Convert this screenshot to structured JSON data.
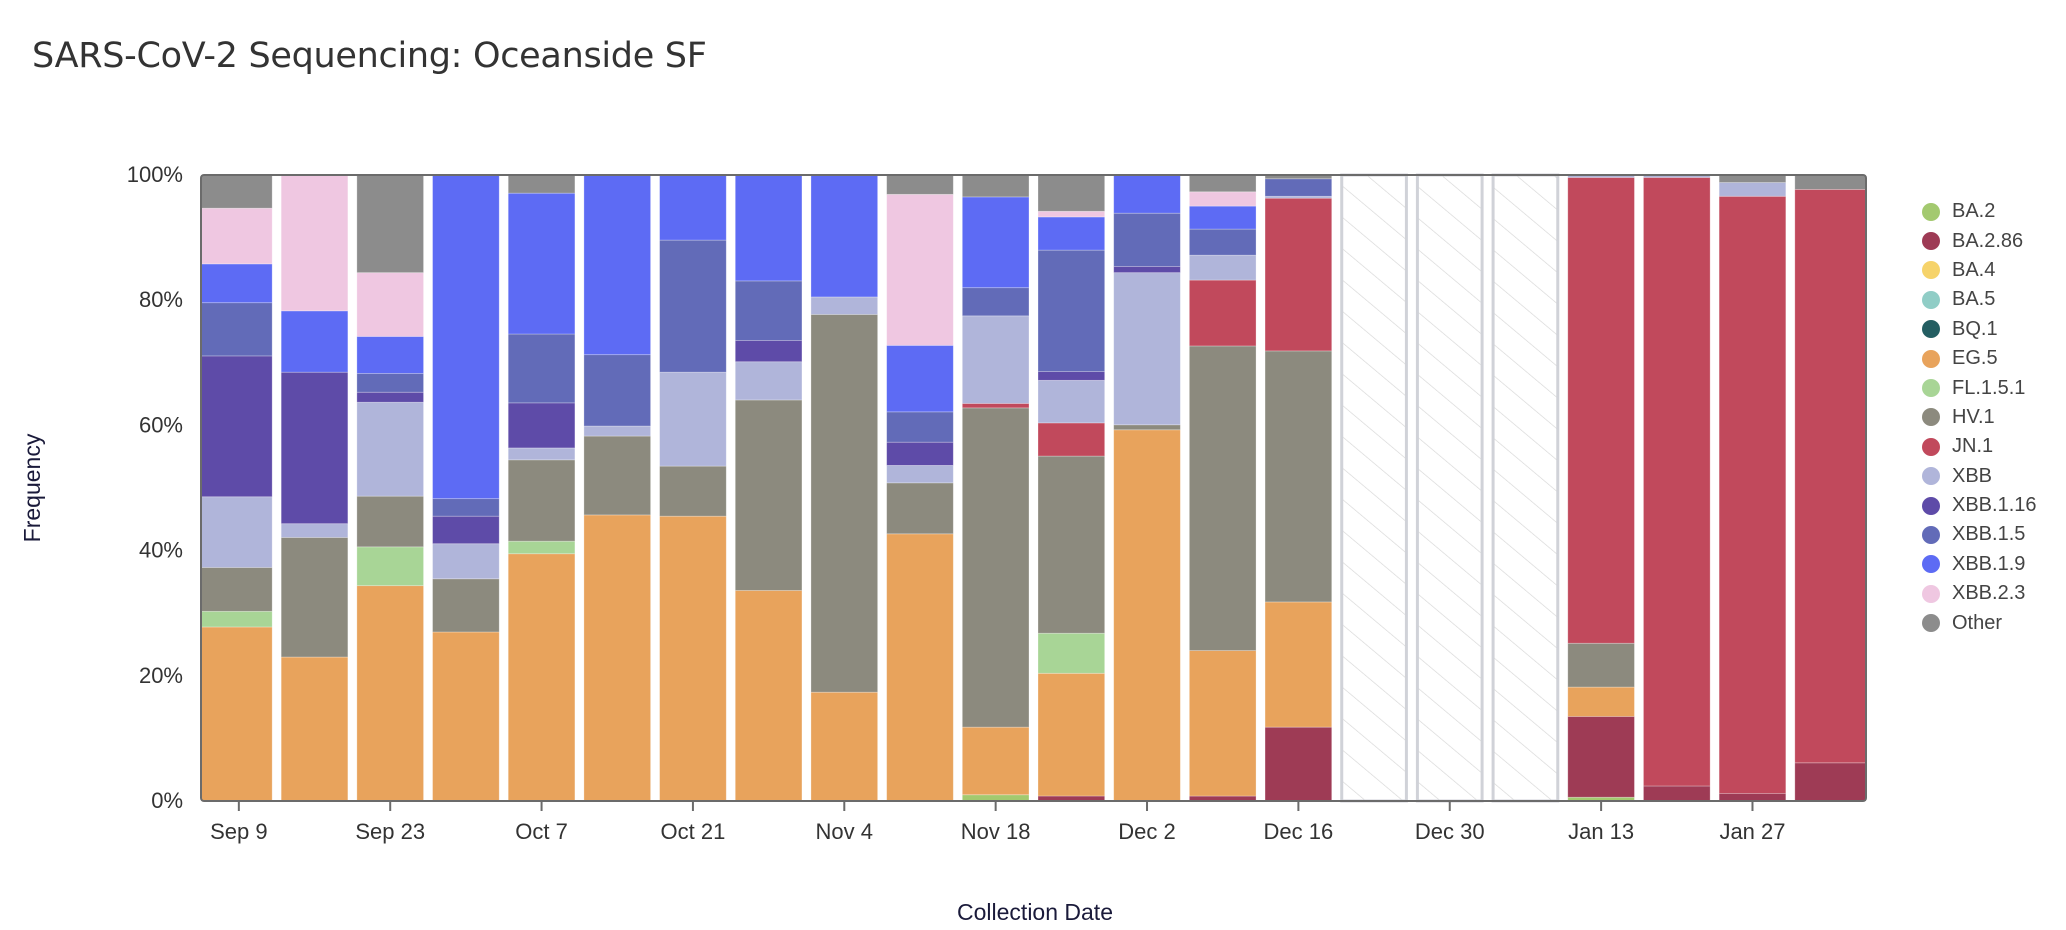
{
  "title": "SARS-CoV-2 Sequencing: Oceanside SF",
  "chart_data": {
    "type": "bar",
    "stacked": true,
    "normalized": true,
    "title": "SARS-CoV-2 Sequencing: Oceanside SF",
    "xlabel": "Collection Date",
    "ylabel": "Frequency",
    "ylim": [
      0,
      100
    ],
    "yticks": [
      "0%",
      "20%",
      "40%",
      "60%",
      "80%",
      "100%"
    ],
    "xticks": [
      "Sep 9",
      "Sep 23",
      "Oct 7",
      "Oct 21",
      "Nov 4",
      "Nov 18",
      "Dec 2",
      "Dec 16",
      "Dec 30",
      "Jan 13",
      "Jan 27"
    ],
    "grid": false,
    "legend_position": "right",
    "categories": [
      "Sep 9",
      "Sep 16",
      "Sep 23",
      "Sep 30",
      "Oct 7",
      "Oct 14",
      "Oct 21",
      "Oct 28",
      "Nov 4",
      "Nov 11",
      "Nov 18",
      "Nov 25",
      "Dec 2",
      "Dec 9",
      "Dec 16",
      "Dec 23",
      "Dec 30",
      "Jan 6",
      "Jan 13",
      "Jan 20",
      "Jan 27",
      "Feb 3"
    ],
    "no_data": [
      false,
      false,
      false,
      false,
      false,
      false,
      false,
      false,
      false,
      false,
      false,
      false,
      false,
      false,
      false,
      true,
      true,
      true,
      false,
      false,
      false,
      false
    ],
    "series": [
      {
        "name": "BA.2",
        "color": "#a3c96f",
        "values": [
          0,
          0,
          0,
          0,
          0,
          0,
          0,
          0,
          0,
          0,
          1.0,
          0,
          0,
          0,
          0,
          0,
          0,
          0,
          0.6,
          0,
          0,
          0
        ]
      },
      {
        "name": "BA.2.86",
        "color": "#9e3b55",
        "values": [
          0,
          0,
          0,
          0,
          0,
          0,
          0,
          0,
          0,
          0,
          0,
          0.8,
          0,
          0.8,
          11.8,
          0,
          0,
          0,
          12.9,
          2.4,
          1.2,
          6.1
        ]
      },
      {
        "name": "BA.4",
        "color": "#f6d36a",
        "values": [
          0,
          0,
          0,
          0,
          0,
          0,
          0,
          0,
          0,
          0,
          0,
          0,
          0,
          0,
          0,
          0,
          0,
          0,
          0,
          0,
          0,
          0
        ]
      },
      {
        "name": "BA.5",
        "color": "#90cdc6",
        "values": [
          0,
          0,
          0,
          0,
          0,
          0,
          0,
          0,
          0,
          0,
          0,
          0,
          0,
          0,
          0,
          0,
          0,
          0,
          0,
          0,
          0,
          0
        ]
      },
      {
        "name": "BQ.1",
        "color": "#245e62",
        "values": [
          0,
          0,
          0,
          0,
          0,
          0,
          0,
          0,
          0,
          0,
          0,
          0,
          0,
          0,
          0,
          0,
          0,
          0,
          0,
          0,
          0,
          0
        ]
      },
      {
        "name": "EG.5",
        "color": "#e8a35c",
        "values": [
          27.8,
          23.0,
          34.4,
          27.0,
          39.5,
          45.7,
          45.5,
          33.6,
          17.4,
          41.4,
          10.8,
          19.6,
          59.3,
          23.4,
          20.0,
          0,
          0,
          0,
          4.7,
          0,
          0,
          0
        ]
      },
      {
        "name": "FL.1.5.1",
        "color": "#a8d596",
        "values": [
          2.5,
          0,
          6.2,
          0,
          2.0,
          0,
          0,
          0,
          0,
          0,
          0,
          6.4,
          0,
          0,
          0,
          0,
          0,
          0,
          0,
          0,
          0,
          0
        ]
      },
      {
        "name": "HV.1",
        "color": "#8c8a7e",
        "values": [
          7.0,
          19.1,
          8.1,
          8.5,
          13.0,
          12.6,
          8.0,
          30.4,
          60.4,
          7.9,
          51.0,
          28.3,
          0.8,
          49.0,
          40.1,
          0,
          0,
          0,
          7.0,
          0,
          0,
          0
        ]
      },
      {
        "name": "JN.1",
        "color": "#c1495c",
        "values": [
          0,
          0,
          0,
          0,
          0,
          0,
          0,
          0,
          0,
          0,
          0.7,
          5.3,
          0,
          10.6,
          24.4,
          0,
          0,
          0,
          74.4,
          97.2,
          95.4,
          91.6
        ]
      },
      {
        "name": "XBB",
        "color": "#b0b5da",
        "values": [
          11.3,
          2.2,
          15.0,
          5.6,
          1.9,
          1.6,
          15.0,
          6.1,
          2.8,
          2.7,
          14.0,
          6.8,
          24.3,
          4.0,
          0.3,
          0,
          0,
          0,
          0.4,
          0.4,
          2.2,
          0
        ]
      },
      {
        "name": "XBB.1.16",
        "color": "#5e4ba8",
        "values": [
          22.5,
          24.2,
          1.6,
          4.4,
          7.2,
          0,
          0,
          3.4,
          0,
          3.6,
          0,
          1.4,
          1.0,
          0,
          0,
          0,
          0,
          0,
          0,
          0,
          0,
          0
        ]
      },
      {
        "name": "XBB.1.5",
        "color": "#626bb8",
        "values": [
          8.5,
          0,
          3.0,
          2.8,
          11.0,
          11.4,
          21.1,
          9.5,
          0,
          4.7,
          4.5,
          19.4,
          8.5,
          4.2,
          2.8,
          0,
          0,
          0,
          0,
          0,
          0,
          0
        ]
      },
      {
        "name": "XBB.1.9",
        "color": "#5d6bf4",
        "values": [
          6.2,
          9.8,
          5.9,
          51.7,
          22.5,
          28.7,
          10.4,
          16.9,
          19.5,
          10.3,
          14.5,
          5.3,
          6.1,
          3.7,
          0,
          0,
          0,
          0,
          0,
          0,
          0,
          0
        ]
      },
      {
        "name": "XBB.2.3",
        "color": "#efc7e1",
        "values": [
          8.9,
          21.7,
          10.2,
          0,
          0,
          0,
          0,
          0,
          0,
          23.4,
          0,
          0.9,
          0,
          2.3,
          0,
          0,
          0,
          0,
          0,
          0,
          0,
          0
        ]
      },
      {
        "name": "Other",
        "color": "#8c8c8c",
        "values": [
          5.3,
          0,
          15.6,
          0,
          2.9,
          0,
          0,
          0,
          0,
          3.0,
          3.5,
          5.8,
          0,
          2.7,
          0.6,
          0,
          0,
          0,
          0,
          0,
          1.2,
          2.3
        ]
      }
    ]
  }
}
